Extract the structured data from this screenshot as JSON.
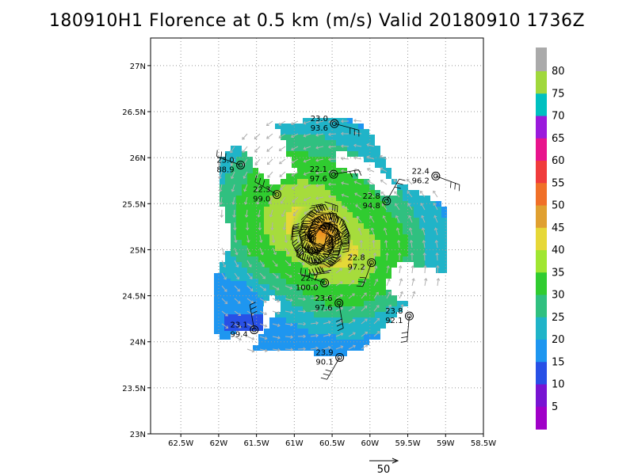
{
  "title": "180910H1 Florence at 0.5 km (m/s) Valid 20180910 1736Z",
  "axes": {
    "lat_labels": [
      "27N",
      "26.5N",
      "26N",
      "25.5N",
      "25N",
      "24.5N",
      "24N",
      "23.5N",
      "23N"
    ],
    "lat_values": [
      27,
      26.5,
      26,
      25.5,
      25,
      24.5,
      24,
      23.5,
      23
    ],
    "lon_labels": [
      "62.5W",
      "62W",
      "61.5W",
      "61W",
      "60.5W",
      "60W",
      "59.5W",
      "59W",
      "58.5W"
    ],
    "lon_values": [
      -62.5,
      -62,
      -61.5,
      -61,
      -60.5,
      -60,
      -59.5,
      -59,
      -58.5
    ],
    "lat_range": [
      23,
      27.3
    ],
    "lon_range": [
      -62.9,
      -58.5
    ],
    "grid": true
  },
  "storm_center": {
    "lon": -60.65,
    "lat": 25.12
  },
  "dropsondes": [
    {
      "line1": "23.0",
      "line2": "93.6",
      "lon": -60.47,
      "lat": 26.37
    },
    {
      "line1": "23.0",
      "line2": "88.9",
      "lon": -61.71,
      "lat": 25.92
    },
    {
      "line1": "22.1",
      "line2": "97.6",
      "lon": -60.48,
      "lat": 25.82
    },
    {
      "line1": "22.4",
      "line2": "96.2",
      "lon": -59.13,
      "lat": 25.8
    },
    {
      "line1": "22.3",
      "line2": "99.0",
      "lon": -61.23,
      "lat": 25.6
    },
    {
      "line1": "22.8",
      "line2": "94.8",
      "lon": -59.78,
      "lat": 25.53
    },
    {
      "line1": "22.8",
      "line2": "97.2",
      "lon": -59.98,
      "lat": 24.86
    },
    {
      "line1": "22.7",
      "line2": "100.0",
      "lon": -60.6,
      "lat": 24.64
    },
    {
      "line1": "23.6",
      "line2": "97.6",
      "lon": -60.41,
      "lat": 24.42
    },
    {
      "line1": "23.8",
      "line2": "92.1",
      "lon": -59.48,
      "lat": 24.28
    },
    {
      "line1": "23.1",
      "line2": "99.4",
      "lon": -61.53,
      "lat": 24.13
    },
    {
      "line1": "23.9",
      "line2": "90.1",
      "lon": -60.4,
      "lat": 23.83
    }
  ],
  "colorbar": {
    "labels": [
      "80",
      "75",
      "70",
      "65",
      "60",
      "55",
      "50",
      "45",
      "40",
      "35",
      "30",
      "25",
      "20",
      "15",
      "10",
      "5"
    ],
    "colors": [
      "#aaaaaa",
      "#a0d83c",
      "#00c0c0",
      "#9a1adc",
      "#e8148c",
      "#f03c3c",
      "#f07028",
      "#e0a030",
      "#e6d838",
      "#a0e632",
      "#30cc30",
      "#30c080",
      "#20b4c8",
      "#1e96f0",
      "#2850e6",
      "#7814d2",
      "#a000c8"
    ]
  },
  "scale_arrow": {
    "label": "50"
  }
}
